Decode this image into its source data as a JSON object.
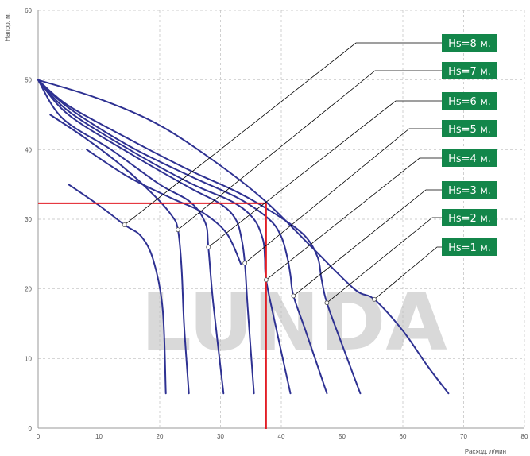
{
  "chart_data": {
    "type": "line",
    "title": "",
    "xlabel": "Расход, л/мин",
    "ylabel": "Напор, м.",
    "xlim": [
      0,
      80
    ],
    "ylim": [
      0,
      60
    ],
    "x_ticks": [
      "0",
      "10",
      "20",
      "30",
      "40",
      "50",
      "60",
      "70",
      "80"
    ],
    "y_ticks": [
      "0",
      "10",
      "20",
      "30",
      "40",
      "50",
      "60"
    ],
    "grid": "dashed",
    "watermark": "LUNDA",
    "watermark_color": "#d9d9d9",
    "curve_color": "#2e3192",
    "label_box_color": "#13864a",
    "operating_point_color": "#e21e26",
    "operating_point": {
      "x": 37.5,
      "y": 32.3
    },
    "series": [
      {
        "name": "Hs=1 м.",
        "points": [
          [
            0,
            50
          ],
          [
            10,
            47.3
          ],
          [
            20,
            43.5
          ],
          [
            30,
            37.7
          ],
          [
            37.5,
            32.5
          ],
          [
            45,
            26
          ],
          [
            52,
            20
          ],
          [
            55.3,
            18.5
          ],
          [
            60,
            14
          ],
          [
            64,
            9
          ],
          [
            67.5,
            5
          ]
        ],
        "marker": [
          55.3,
          18.5
        ]
      },
      {
        "name": "Hs=2 м.",
        "points": [
          [
            0,
            50
          ],
          [
            5,
            46.3
          ],
          [
            15,
            41.5
          ],
          [
            25,
            37
          ],
          [
            33,
            33.8
          ],
          [
            40,
            30.2
          ],
          [
            44,
            27.5
          ],
          [
            46,
            24.5
          ],
          [
            46.6,
            21.5
          ],
          [
            47.5,
            18
          ],
          [
            50,
            12
          ],
          [
            53,
            5
          ]
        ],
        "marker": [
          47.5,
          18
        ]
      },
      {
        "name": "Hs=3 м.",
        "points": [
          [
            0,
            50
          ],
          [
            5,
            46
          ],
          [
            15,
            40.5
          ],
          [
            25,
            36.2
          ],
          [
            33,
            33
          ],
          [
            38,
            30
          ],
          [
            40,
            27.5
          ],
          [
            41,
            24.5
          ],
          [
            41.5,
            22
          ],
          [
            42,
            19
          ],
          [
            44,
            14
          ],
          [
            47.5,
            5
          ]
        ],
        "marker": [
          42,
          19
        ]
      },
      {
        "name": "Hs=4 м.",
        "points": [
          [
            0,
            50
          ],
          [
            5,
            45.5
          ],
          [
            15,
            40
          ],
          [
            25,
            35.2
          ],
          [
            32,
            32.5
          ],
          [
            35.5,
            30
          ],
          [
            37,
            27
          ],
          [
            37.3,
            24.5
          ],
          [
            37.5,
            21.3
          ],
          [
            39,
            15
          ],
          [
            41.5,
            5
          ]
        ],
        "marker": [
          37.5,
          21.3
        ]
      },
      {
        "name": "Hs=5 м.",
        "points": [
          [
            0,
            50
          ],
          [
            5,
            45
          ],
          [
            15,
            39.5
          ],
          [
            25,
            34.5
          ],
          [
            30,
            32.2
          ],
          [
            32.5,
            30
          ],
          [
            33.5,
            27
          ],
          [
            34,
            23.7
          ],
          [
            34.5,
            17
          ],
          [
            35.5,
            5
          ]
        ],
        "marker": [
          34,
          23.7
        ]
      },
      {
        "name": "Hs=6 м.",
        "points": [
          [
            0,
            50
          ],
          [
            4,
            44.5
          ],
          [
            12,
            40
          ],
          [
            20,
            35
          ],
          [
            25,
            32.5
          ],
          [
            27.5,
            29.5
          ],
          [
            28,
            26
          ],
          [
            28.8,
            18
          ],
          [
            30.5,
            5
          ]
        ],
        "marker": [
          28,
          26
        ]
      },
      {
        "name": "Hs=7 м.",
        "points": [
          [
            2,
            45
          ],
          [
            8,
            41.5
          ],
          [
            14,
            37.5
          ],
          [
            19,
            33.5
          ],
          [
            22,
            30.5
          ],
          [
            23,
            28.5
          ],
          [
            23.6,
            23
          ],
          [
            24,
            15
          ],
          [
            24.8,
            5
          ]
        ],
        "marker": [
          23,
          28.5
        ]
      },
      {
        "name": "Hs=8 м.",
        "points": [
          [
            5,
            35
          ],
          [
            10,
            32
          ],
          [
            14.2,
            29.2
          ],
          [
            17,
            27.5
          ],
          [
            19,
            24
          ],
          [
            20.5,
            17
          ],
          [
            21,
            5
          ]
        ],
        "marker": [
          14.2,
          29.2
        ]
      },
      {
        "name": "",
        "points": [
          [
            8,
            40
          ],
          [
            15,
            36
          ],
          [
            22,
            33
          ],
          [
            27,
            31
          ],
          [
            31,
            28
          ],
          [
            33.4,
            23.5
          ]
        ],
        "marker": null
      }
    ]
  }
}
